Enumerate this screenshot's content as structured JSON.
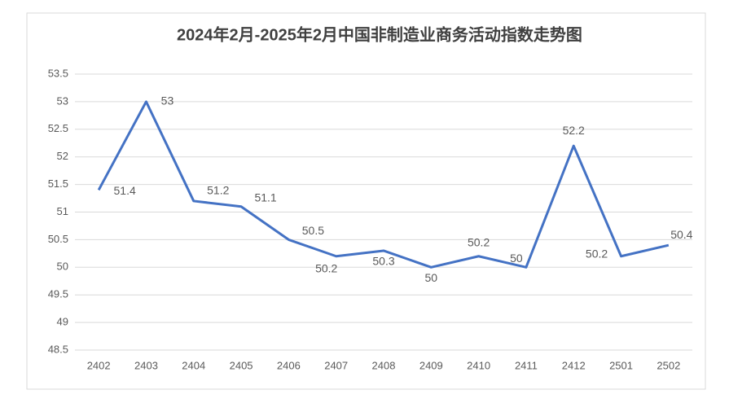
{
  "chart_data": {
    "type": "line",
    "title": "2024年2月-2025年2月中国非制造业商务活动指数走势图",
    "categories": [
      "2402",
      "2403",
      "2404",
      "2405",
      "2406",
      "2407",
      "2408",
      "2409",
      "2410",
      "2411",
      "2412",
      "2501",
      "2502"
    ],
    "values": [
      51.4,
      53,
      51.2,
      51.1,
      50.5,
      50.2,
      50.3,
      50,
      50.2,
      50,
      52.2,
      50.2,
      50.4
    ],
    "color": "#4472c4",
    "ylim": [
      48.5,
      53.5
    ],
    "yticks": [
      48.5,
      49,
      49.5,
      50,
      50.5,
      51,
      51.5,
      52,
      52.5,
      53,
      53.5
    ],
    "grid": true
  }
}
